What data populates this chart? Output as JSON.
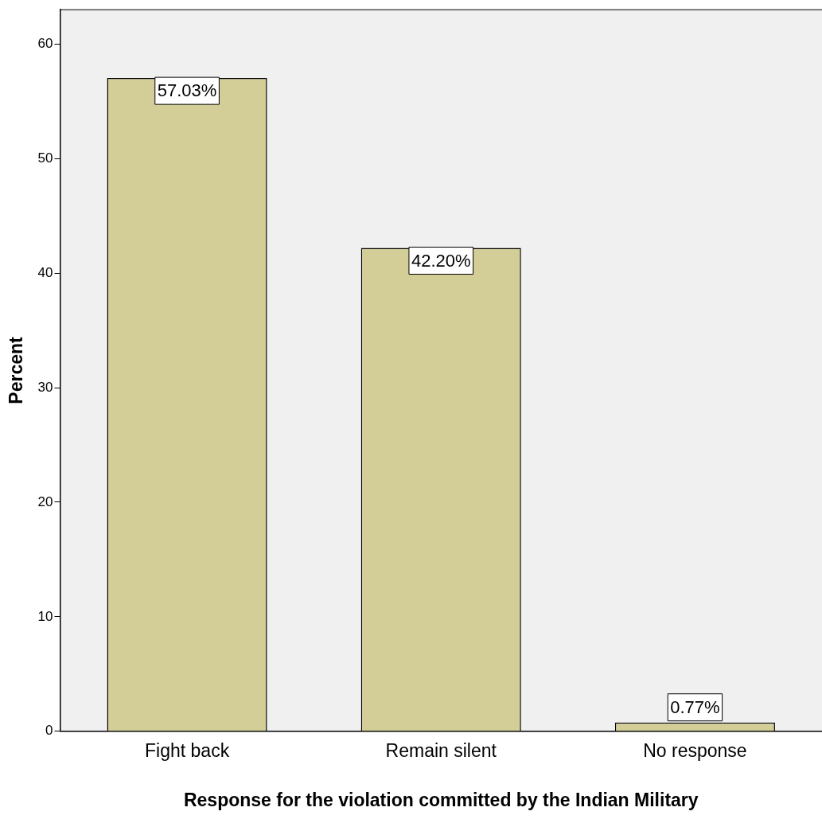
{
  "chart_data": {
    "type": "bar",
    "xlabel": "Response for the violation committed by the Indian Military",
    "ylabel": "Percent",
    "categories": [
      "Fight back",
      "Remain silent",
      "No response"
    ],
    "values": [
      57.03,
      42.2,
      0.77
    ],
    "value_labels": [
      "57.03%",
      "42.20%",
      "0.77%"
    ],
    "color": "#d3ce97",
    "ylim": [
      0,
      63
    ],
    "yticks": [
      0,
      10,
      20,
      30,
      40,
      50,
      60
    ],
    "grid": false,
    "legend": false
  }
}
